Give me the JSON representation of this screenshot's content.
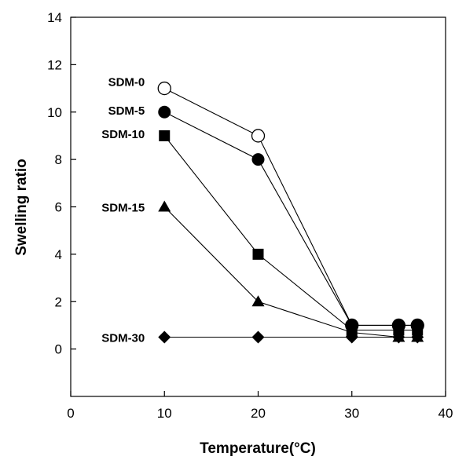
{
  "chart_data": {
    "type": "line",
    "xlabel": "Temperature(°C)",
    "ylabel": "Swelling ratio",
    "xlim": [
      0,
      40
    ],
    "ylim": [
      -2,
      14
    ],
    "xticks": [
      0,
      10,
      20,
      30,
      40
    ],
    "yticks": [
      0,
      2,
      4,
      6,
      8,
      10,
      12,
      14
    ],
    "grid": false,
    "series": [
      {
        "name": "SDM-0",
        "marker": "circle-open",
        "x": [
          10,
          20,
          30,
          35,
          37
        ],
        "y": [
          11,
          9,
          1,
          1,
          1
        ]
      },
      {
        "name": "SDM-5",
        "marker": "circle",
        "x": [
          10,
          20,
          30,
          35,
          37
        ],
        "y": [
          10,
          8,
          1,
          1,
          1
        ]
      },
      {
        "name": "SDM-10",
        "marker": "square",
        "x": [
          10,
          20,
          30,
          35,
          37
        ],
        "y": [
          9,
          4,
          0.8,
          0.8,
          0.8
        ]
      },
      {
        "name": "SDM-15",
        "marker": "triangle",
        "x": [
          10,
          20,
          30,
          35,
          37
        ],
        "y": [
          6,
          2,
          0.7,
          0.5,
          0.5
        ]
      },
      {
        "name": "SDM-30",
        "marker": "diamond",
        "x": [
          10,
          20,
          30,
          35,
          37
        ],
        "y": [
          0.5,
          0.5,
          0.5,
          0.5,
          0.5
        ]
      }
    ]
  }
}
